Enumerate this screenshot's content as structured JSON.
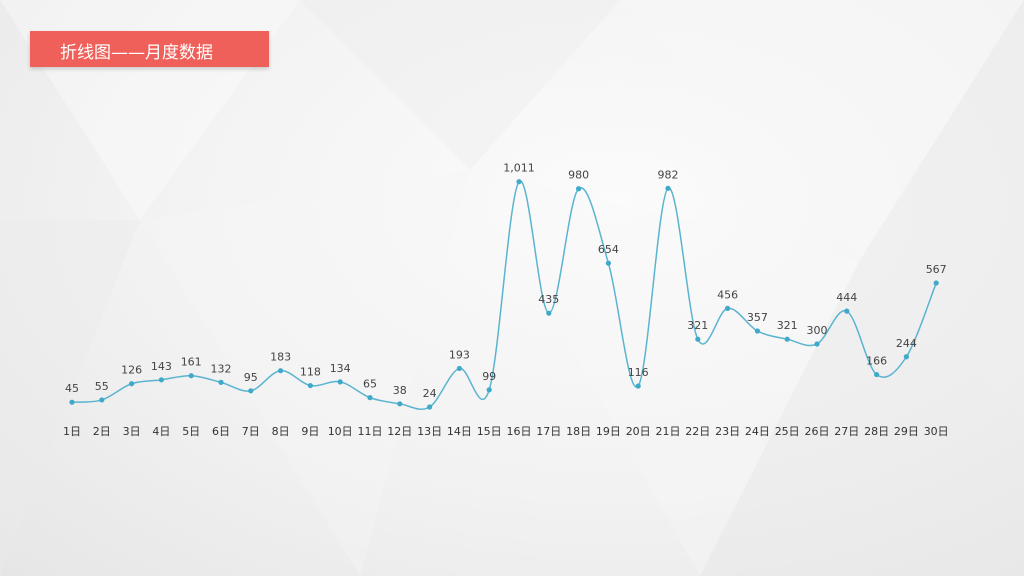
{
  "header": {
    "title": "折线图——月度数据"
  },
  "colors": {
    "accent": "#f0605a",
    "line": "#5ab4d0",
    "point": "#3fa9c9"
  },
  "chart_data": {
    "type": "line",
    "categories": [
      "1日",
      "2日",
      "3日",
      "4日",
      "5日",
      "6日",
      "7日",
      "8日",
      "9日",
      "10日",
      "11日",
      "12日",
      "13日",
      "14日",
      "15日",
      "16日",
      "17日",
      "18日",
      "19日",
      "20日",
      "21日",
      "22日",
      "23日",
      "24日",
      "25日",
      "26日",
      "27日",
      "28日",
      "29日",
      "30日"
    ],
    "values": [
      45,
      55,
      126,
      143,
      161,
      132,
      95,
      183,
      118,
      134,
      65,
      38,
      24,
      193,
      99,
      1011,
      435,
      980,
      654,
      116,
      982,
      321,
      456,
      357,
      321,
      300,
      444,
      166,
      244,
      567
    ],
    "data_labels": [
      "45",
      "55",
      "126",
      "143",
      "161",
      "132",
      "95",
      "183",
      "118",
      "134",
      "65",
      "38",
      "24",
      "193",
      "99",
      "1,011",
      "435",
      "980",
      "654",
      "116",
      "982",
      "321",
      "456",
      "357",
      "321",
      "300",
      "444",
      "166",
      "244",
      "567"
    ],
    "title": "",
    "xlabel": "",
    "ylabel": "",
    "ylim": [
      0,
      1050
    ],
    "smooth": true,
    "grid": false,
    "legend": "none"
  }
}
